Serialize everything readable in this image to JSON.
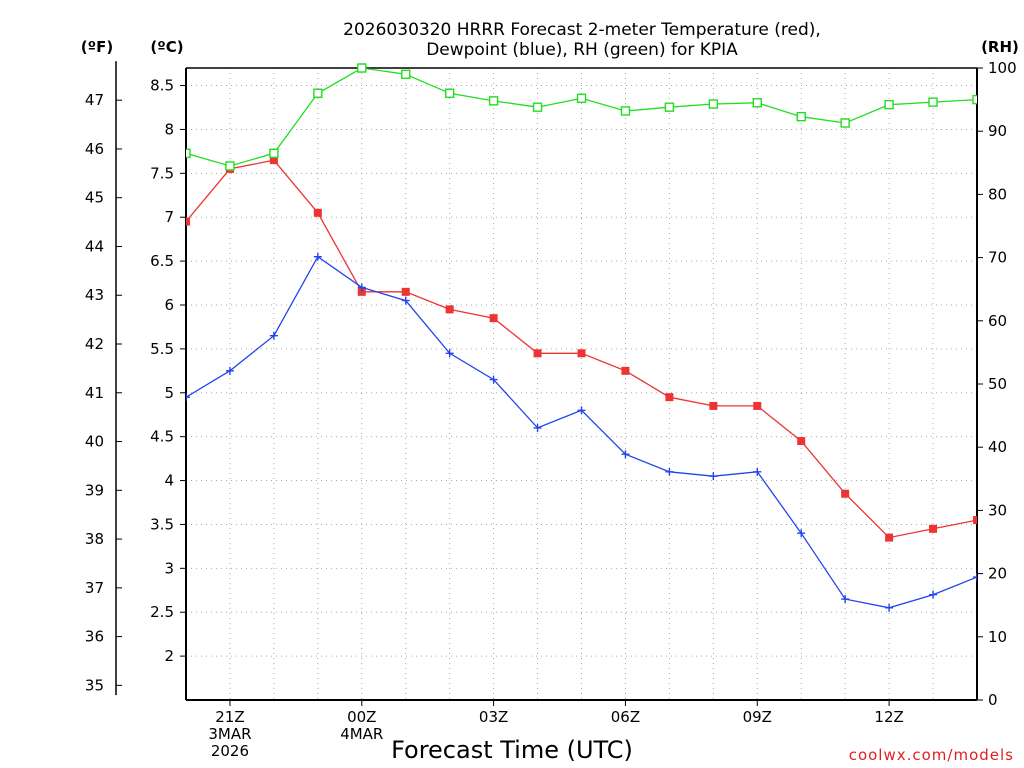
{
  "chart_data": {
    "type": "line",
    "title_line1": "2026030320 HRRR Forecast 2-meter Temperature (red),",
    "title_line2": "Dewpoint (blue), RH (green) for KPIA",
    "xlabel": "Forecast Time (UTC)",
    "units": {
      "fahrenheit": "(ºF)",
      "celsius": "(ºC)",
      "rh": "(RH)"
    },
    "credit": "coolwx.com/models",
    "x_hours": [
      20,
      21,
      22,
      23,
      24,
      25,
      26,
      27,
      28,
      29,
      30,
      31,
      32,
      33,
      34,
      35,
      36,
      37,
      38
    ],
    "x_ticks": [
      {
        "hour": 21,
        "lines": [
          "21Z",
          "3MAR",
          "2026"
        ]
      },
      {
        "hour": 24,
        "lines": [
          "00Z",
          "4MAR"
        ]
      },
      {
        "hour": 27,
        "lines": [
          "03Z"
        ]
      },
      {
        "hour": 30,
        "lines": [
          "06Z"
        ]
      },
      {
        "hour": 33,
        "lines": [
          "09Z"
        ]
      },
      {
        "hour": 36,
        "lines": [
          "12Z"
        ]
      }
    ],
    "xlim": [
      20,
      38
    ],
    "ylim_c": [
      1.5,
      8.7
    ],
    "ylim_rh": [
      0,
      100
    ],
    "celsius_ticks": [
      "2",
      "2.5",
      "3",
      "3.5",
      "4",
      "4.5",
      "5",
      "5.5",
      "6",
      "6.5",
      "7",
      "7.5",
      "8",
      "8.5"
    ],
    "fahrenheit_ticks": [
      "35",
      "36",
      "37",
      "38",
      "39",
      "40",
      "41",
      "42",
      "43",
      "44",
      "45",
      "46",
      "47"
    ],
    "rh_ticks": [
      "0",
      "10",
      "20",
      "30",
      "40",
      "50",
      "60",
      "70",
      "80",
      "90",
      "100"
    ],
    "series": [
      {
        "name": "Temperature",
        "unit": "C",
        "color": "#ee3333",
        "marker": "filled-square",
        "values": [
          6.95,
          7.55,
          7.65,
          7.05,
          6.15,
          6.15,
          5.95,
          5.85,
          5.45,
          5.45,
          5.25,
          4.95,
          4.85,
          4.85,
          4.45,
          3.85,
          3.35,
          3.45,
          3.55
        ]
      },
      {
        "name": "Dewpoint",
        "unit": "C",
        "color": "#2244ee",
        "marker": "plus",
        "values": [
          4.95,
          5.25,
          5.65,
          6.55,
          6.2,
          6.05,
          5.45,
          5.15,
          4.6,
          4.8,
          4.3,
          4.1,
          4.05,
          4.1,
          3.4,
          2.65,
          2.55,
          2.7,
          2.9
        ]
      },
      {
        "name": "RH",
        "unit": "%",
        "color": "#22dd22",
        "marker": "open-square",
        "values": [
          86.5,
          84.5,
          86.5,
          96,
          100,
          99,
          96,
          94.8,
          93.8,
          95.2,
          93.2,
          93.8,
          94.3,
          94.5,
          92.3,
          91.3,
          94.2,
          94.6,
          95
        ]
      }
    ]
  }
}
